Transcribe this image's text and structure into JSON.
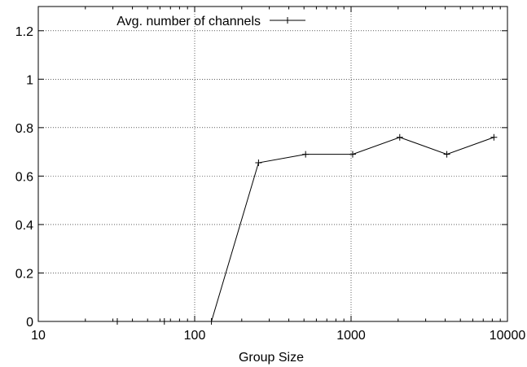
{
  "chart_data": {
    "type": "line",
    "title": "",
    "xlabel": "Group Size",
    "ylabel": "",
    "x_scale": "log",
    "xlim": [
      10,
      10000
    ],
    "ylim": [
      0,
      1.3
    ],
    "x_ticks": [
      10,
      100,
      1000,
      10000
    ],
    "x_tick_labels": [
      "10",
      "100",
      "1000",
      "10000"
    ],
    "y_ticks": [
      0,
      0.2,
      0.4,
      0.6,
      0.8,
      1,
      1.2
    ],
    "y_tick_labels": [
      "0",
      "0.2",
      "0.4",
      "0.6",
      "0.8",
      "1",
      "1.2"
    ],
    "grid": true,
    "legend_position": "top-left",
    "series": [
      {
        "name": "Avg. number of channels",
        "color": "#000000",
        "marker": "plus",
        "x": [
          32,
          64,
          128,
          256,
          512,
          1024,
          2048,
          4096,
          8192
        ],
        "y": [
          0,
          0,
          0,
          0.655,
          0.69,
          0.69,
          0.76,
          0.69,
          0.76
        ]
      }
    ]
  }
}
